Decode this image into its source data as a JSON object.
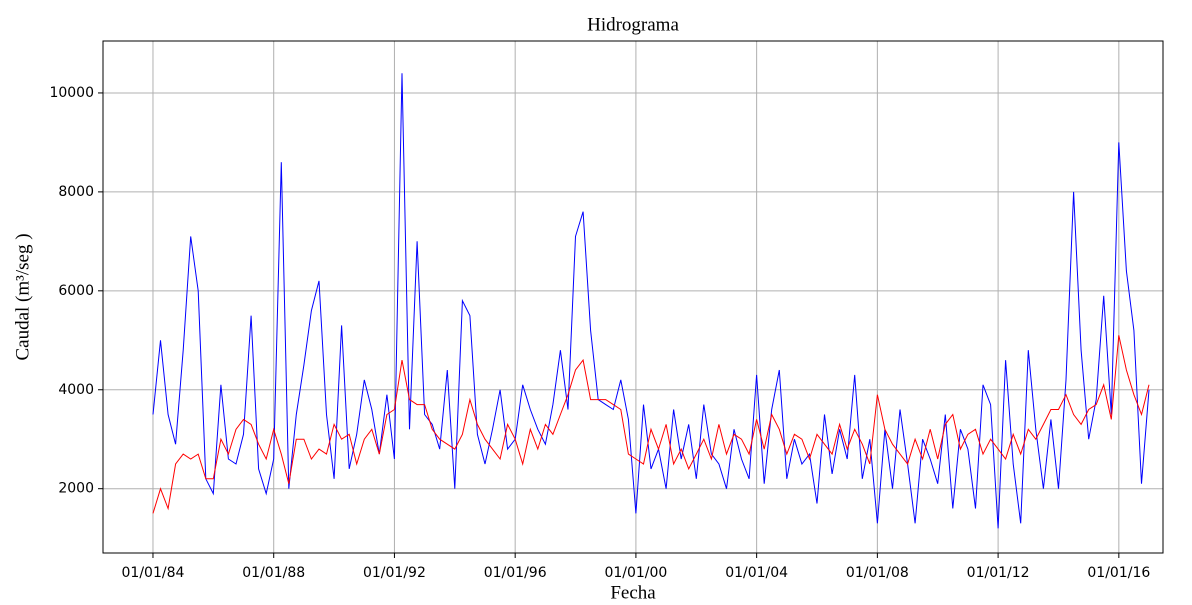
{
  "chart_data": {
    "type": "line",
    "title": "Hidrograma",
    "x_label": "Fecha",
    "y_label": "Caudal (m³/seg )",
    "x": [
      "01/01/84",
      "01/04/84",
      "01/07/84",
      "01/10/84",
      "01/01/85",
      "01/04/85",
      "01/07/85",
      "01/10/85",
      "01/01/86",
      "01/04/86",
      "01/07/86",
      "01/10/86",
      "01/01/87",
      "01/04/87",
      "01/07/87",
      "01/10/87",
      "01/01/88",
      "01/04/88",
      "01/07/88",
      "01/10/88",
      "01/01/89",
      "01/04/89",
      "01/07/89",
      "01/10/89",
      "01/01/90",
      "01/04/90",
      "01/07/90",
      "01/10/90",
      "01/01/91",
      "01/04/91",
      "01/07/91",
      "01/10/91",
      "01/01/92",
      "01/04/92",
      "01/07/92",
      "01/10/92",
      "01/01/93",
      "01/04/93",
      "01/07/93",
      "01/10/93",
      "01/01/94",
      "01/04/94",
      "01/07/94",
      "01/10/94",
      "01/01/95",
      "01/04/95",
      "01/07/95",
      "01/10/95",
      "01/01/96",
      "01/04/96",
      "01/07/96",
      "01/10/96",
      "01/01/97",
      "01/04/97",
      "01/07/97",
      "01/10/97",
      "01/01/98",
      "01/04/98",
      "01/07/98",
      "01/10/98",
      "01/01/99",
      "01/04/99",
      "01/07/99",
      "01/10/99",
      "01/01/00",
      "01/04/00",
      "01/07/00",
      "01/10/00",
      "01/01/01",
      "01/04/01",
      "01/07/01",
      "01/10/01",
      "01/01/02",
      "01/04/02",
      "01/07/02",
      "01/10/02",
      "01/01/03",
      "01/04/03",
      "01/07/03",
      "01/10/03",
      "01/01/04",
      "01/04/04",
      "01/07/04",
      "01/10/04",
      "01/01/05",
      "01/04/05",
      "01/07/05",
      "01/10/05",
      "01/01/06",
      "01/04/06",
      "01/07/06",
      "01/10/06",
      "01/01/07",
      "01/04/07",
      "01/07/07",
      "01/10/07",
      "01/01/08",
      "01/04/08",
      "01/07/08",
      "01/10/08",
      "01/01/09",
      "01/04/09",
      "01/07/09",
      "01/10/09",
      "01/01/10",
      "01/04/10",
      "01/07/10",
      "01/10/10",
      "01/01/11",
      "01/04/11",
      "01/07/11",
      "01/10/11",
      "01/01/12",
      "01/04/12",
      "01/07/12",
      "01/10/12",
      "01/01/13",
      "01/04/13",
      "01/07/13",
      "01/10/13",
      "01/01/14",
      "01/04/14",
      "01/07/14",
      "01/10/14",
      "01/01/15",
      "01/04/15",
      "01/07/15",
      "01/10/15",
      "01/01/16",
      "01/04/16",
      "01/07/16",
      "01/10/16",
      "01/01/17"
    ],
    "series": [
      {
        "color": "#0000ff",
        "values": [
          3500,
          5000,
          3500,
          2900,
          4800,
          7100,
          6000,
          2200,
          1900,
          4100,
          2600,
          2500,
          3100,
          5500,
          2400,
          1900,
          2600,
          8600,
          2000,
          3500,
          4500,
          5600,
          6200,
          3500,
          2200,
          5300,
          2400,
          3100,
          4200,
          3600,
          2700,
          3900,
          2600,
          10400,
          3200,
          7000,
          3500,
          3300,
          2800,
          4400,
          2000,
          5800,
          5500,
          3100,
          2500,
          3200,
          4000,
          2800,
          3000,
          4100,
          3600,
          3200,
          2900,
          3700,
          4800,
          3600,
          7100,
          7600,
          5200,
          3800,
          3700,
          3600,
          4200,
          3400,
          1500,
          3700,
          2400,
          2800,
          2000,
          3600,
          2600,
          3300,
          2200,
          3700,
          2700,
          2500,
          2000,
          3200,
          2600,
          2200,
          4300,
          2100,
          3600,
          4400,
          2200,
          3000,
          2500,
          2700,
          1700,
          3500,
          2300,
          3200,
          2600,
          4300,
          2200,
          3000,
          1300,
          3200,
          2000,
          3600,
          2500,
          1300,
          3000,
          2600,
          2100,
          3500,
          1600,
          3200,
          2800,
          1600,
          4100,
          3700,
          1200,
          4600,
          2500,
          1300,
          4800,
          3200,
          2000,
          3400,
          2000,
          4200,
          8000,
          4800,
          3000,
          3800,
          5900,
          3500,
          9000,
          6400,
          5200,
          2100,
          4000
        ]
      },
      {
        "color": "#ff0000",
        "values": [
          1500,
          2000,
          1600,
          2500,
          2700,
          2600,
          2700,
          2200,
          2200,
          3000,
          2700,
          3200,
          3400,
          3300,
          2900,
          2600,
          3200,
          2700,
          2100,
          3000,
          3000,
          2600,
          2800,
          2700,
          3300,
          3000,
          3100,
          2500,
          3000,
          3200,
          2700,
          3500,
          3600,
          4600,
          3800,
          3700,
          3700,
          3200,
          3000,
          2900,
          2800,
          3100,
          3800,
          3300,
          3000,
          2800,
          2600,
          3300,
          3000,
          2500,
          3200,
          2800,
          3300,
          3100,
          3500,
          3900,
          4400,
          4600,
          3800,
          3800,
          3800,
          3700,
          3600,
          2700,
          2600,
          2500,
          3200,
          2800,
          3300,
          2500,
          2800,
          2400,
          2700,
          3000,
          2600,
          3300,
          2700,
          3100,
          3000,
          2700,
          3400,
          2800,
          3500,
          3200,
          2700,
          3100,
          3000,
          2600,
          3100,
          2900,
          2700,
          3300,
          2800,
          3200,
          2900,
          2500,
          3900,
          3200,
          2900,
          2700,
          2500,
          3000,
          2600,
          3200,
          2600,
          3300,
          3500,
          2800,
          3100,
          3200,
          2700,
          3000,
          2800,
          2600,
          3100,
          2700,
          3200,
          3000,
          3300,
          3600,
          3600,
          3900,
          3500,
          3300,
          3600,
          3700,
          4100,
          3400,
          5100,
          4400,
          3900,
          3500,
          4100
        ]
      }
    ],
    "xlim": [
      "05/05/82",
      "18/06/17"
    ],
    "xticks": [
      "01/01/84",
      "01/01/88",
      "01/01/92",
      "01/01/96",
      "01/01/00",
      "01/01/04",
      "01/01/08",
      "01/01/12",
      "01/01/16"
    ],
    "ylim": [
      700,
      11050
    ],
    "yticks": [
      2000,
      4000,
      6000,
      8000,
      10000
    ],
    "grid": true
  }
}
